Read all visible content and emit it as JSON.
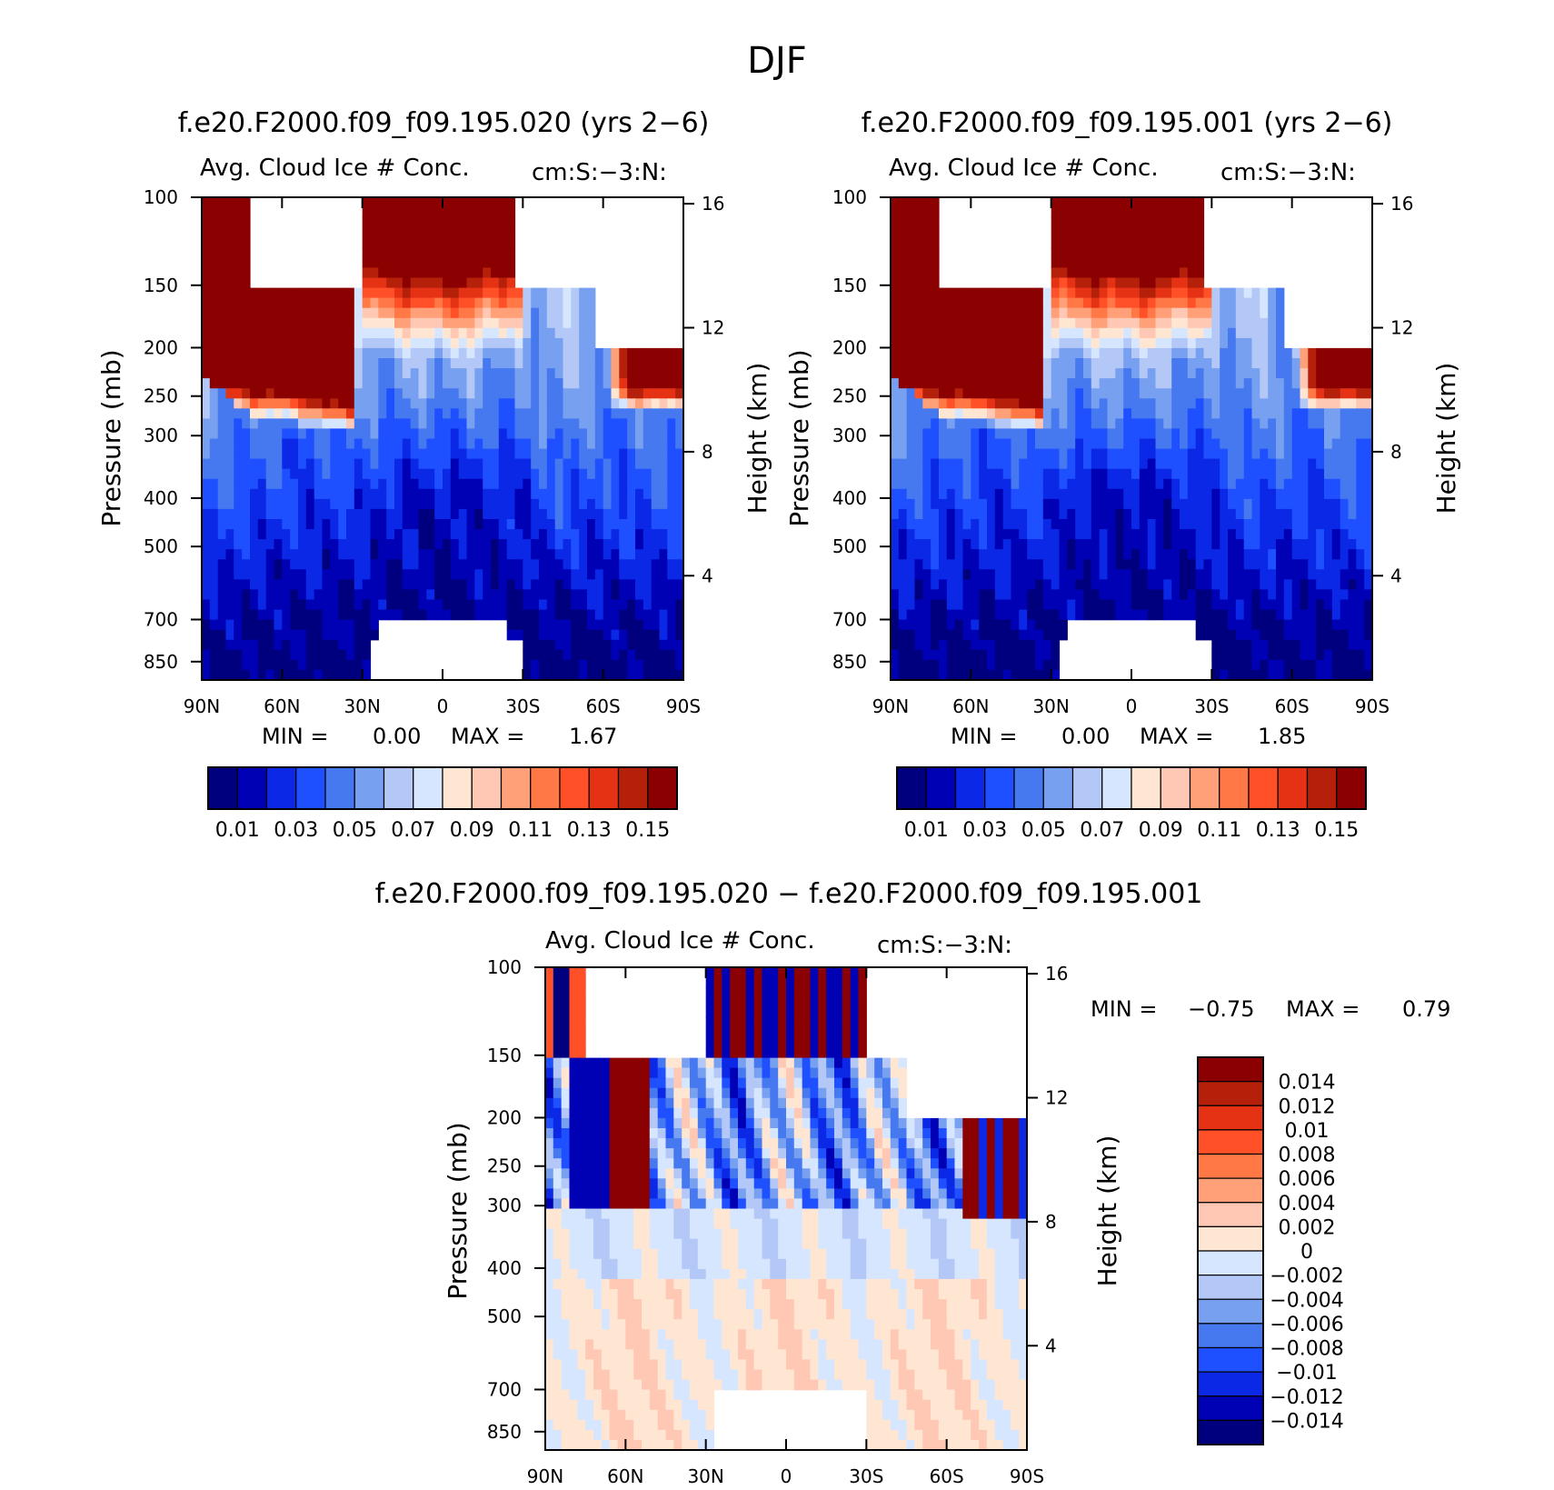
{
  "page": {
    "title": "DJF"
  },
  "colors": {
    "abs_scale": [
      "#00007f",
      "#0000b4",
      "#0a28e6",
      "#1e50ff",
      "#4678f0",
      "#78a0f0",
      "#b4c8f8",
      "#d7e6ff",
      "#ffe6d2",
      "#ffc8b4",
      "#ffa078",
      "#ff7846",
      "#ff5028",
      "#e63214",
      "#b4200a",
      "#8b0000"
    ],
    "diff_scale": [
      "#00007f",
      "#0000b4",
      "#0a28e6",
      "#1e50ff",
      "#4678f0",
      "#78a0f0",
      "#b4c8f8",
      "#d7e6ff",
      "#ffe6d2",
      "#ffc8b4",
      "#ffa078",
      "#ff7846",
      "#ff5028",
      "#e63214",
      "#b4200a",
      "#8b0000"
    ]
  },
  "panels": [
    {
      "title": "f.e20.F2000.f09_f09.195.020 (yrs 2−6)",
      "variable": "Avg. Cloud Ice # Conc.",
      "units": "cm:S:−3:N:",
      "min_label": "MIN =",
      "min_value": "0.00",
      "max_label": "MAX =",
      "max_value": "1.67",
      "ylabel": "Pressure (mb)",
      "y2label": "Height (km)"
    },
    {
      "title": "f.e20.F2000.f09_f09.195.001 (yrs 2−6)",
      "variable": "Avg. Cloud Ice # Conc.",
      "units": "cm:S:−3:N:",
      "min_label": "MIN =",
      "min_value": "0.00",
      "max_label": "MAX =",
      "max_value": "1.85",
      "ylabel": "Pressure (mb)",
      "y2label": "Height (km)"
    },
    {
      "title": "f.e20.F2000.f09_f09.195.020 − f.e20.F2000.f09_f09.195.001",
      "variable": "Avg. Cloud Ice # Conc.",
      "units": "cm:S:−3:N:",
      "min_label": "MIN =",
      "min_value": "−0.75",
      "max_label": "MAX =",
      "max_value": "0.79",
      "ylabel": "Pressure (mb)",
      "y2label": "Height (km)"
    }
  ],
  "chart_data": [
    {
      "type": "heatmap",
      "panel": 0,
      "x_ticks": [
        "90N",
        "60N",
        "30N",
        "0",
        "30S",
        "60S",
        "90S"
      ],
      "x_range": [
        90,
        -90
      ],
      "y_ticks": [
        100,
        150,
        200,
        250,
        300,
        400,
        500,
        700,
        850
      ],
      "y_range": [
        100,
        925
      ],
      "y_scale": "log",
      "y2_ticks": [
        4,
        8,
        12,
        16
      ],
      "colorbar_labels": [
        "0.01",
        "0.03",
        "0.05",
        "0.07",
        "0.09",
        "0.11",
        "0.13",
        "0.15"
      ],
      "colorbar_orientation": "horizontal"
    },
    {
      "type": "heatmap",
      "panel": 1,
      "x_ticks": [
        "90N",
        "60N",
        "30N",
        "0",
        "30S",
        "60S",
        "90S"
      ],
      "x_range": [
        90,
        -90
      ],
      "y_ticks": [
        100,
        150,
        200,
        250,
        300,
        400,
        500,
        700,
        850
      ],
      "y_range": [
        100,
        925
      ],
      "y_scale": "log",
      "y2_ticks": [
        4,
        8,
        12,
        16
      ],
      "colorbar_labels": [
        "0.01",
        "0.03",
        "0.05",
        "0.07",
        "0.09",
        "0.11",
        "0.13",
        "0.15"
      ],
      "colorbar_orientation": "horizontal"
    },
    {
      "type": "heatmap",
      "panel": 2,
      "x_ticks": [
        "90N",
        "60N",
        "30N",
        "0",
        "30S",
        "60S",
        "90S"
      ],
      "x_range": [
        90,
        -90
      ],
      "y_ticks": [
        100,
        150,
        200,
        250,
        300,
        400,
        500,
        700,
        850
      ],
      "y_range": [
        100,
        925
      ],
      "y_scale": "log",
      "y2_ticks": [
        4,
        8,
        12,
        16
      ],
      "colorbar_labels": [
        "0.014",
        "0.012",
        "0.01",
        "0.008",
        "0.006",
        "0.004",
        "0.002",
        "0",
        "−0.002",
        "−0.004",
        "−0.006",
        "−0.008",
        "−0.01",
        "−0.012",
        "−0.014"
      ],
      "colorbar_orientation": "vertical"
    }
  ]
}
